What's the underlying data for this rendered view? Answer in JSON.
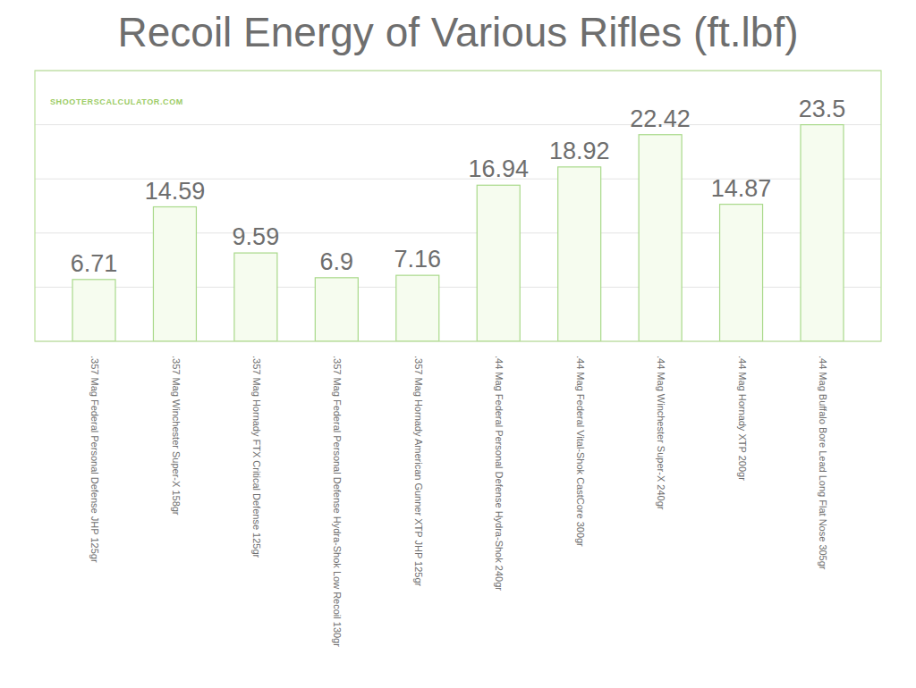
{
  "chart_data": {
    "type": "bar",
    "title": "Recoil Energy of Various Rifles (ft.lbf)",
    "annotations": [
      "SHOOTERSCALCULATOR.COM"
    ],
    "categories": [
      ".357 Mag Federal Personal Defense JHP 125gr",
      ".357 Mag Winchester Super-X 158gr",
      ".357 Mag Hornady FTX Critical Defense 125gr",
      ".357 Mag Federal Personal Defense Hydra-Shok Low Recoil 130gr",
      ".357 Mag Hornady American Gunner XTP JHP 125gr",
      ".44 Mag Federal Personal Defense Hydra-Shok 240gr",
      ".44 Mag Federal Vital-Shok CastCore 300gr",
      ".44 Mag Winchester Super-X 240gr",
      ".44 Mag Hornady XTP 200gr",
      ".44 Mag Buffalo Bore Lead Long Flat Nose 305gr"
    ],
    "values": [
      6.71,
      14.59,
      9.59,
      6.9,
      7.16,
      16.94,
      18.92,
      22.42,
      14.87,
      23.5
    ],
    "color": "#f6fcef",
    "ylim": [
      0,
      29.375
    ],
    "yticks": [
      0,
      5.875,
      11.75,
      17.625,
      23.5,
      29.375
    ],
    "grid": true,
    "data_labels": true,
    "tick_labels": "x"
  }
}
